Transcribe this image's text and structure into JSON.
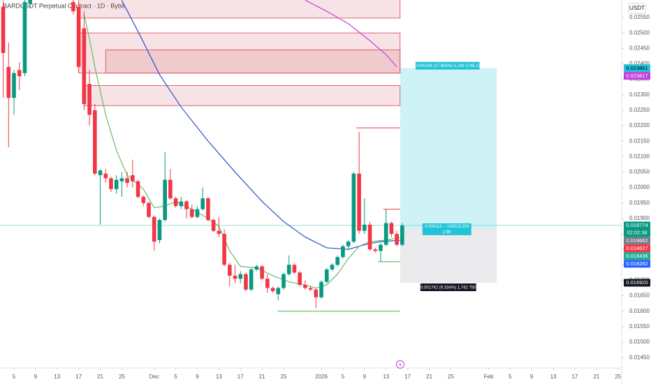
{
  "chart_data": {
    "type": "candlestick",
    "title": "BARDUSDT Perpetual Contract · 1D · Bybit",
    "currency": "USDT",
    "up_color": "#089981",
    "down_color": "#f23645",
    "xlim": [
      -2.59,
      112.69
    ],
    "ylim": [
      0.014165,
      0.026065
    ],
    "xticks": [
      {
        "value": 0,
        "label": "5"
      },
      {
        "value": 4,
        "label": "9"
      },
      {
        "value": 8,
        "label": "13"
      },
      {
        "value": 12,
        "label": "17"
      },
      {
        "value": 16,
        "label": "21"
      },
      {
        "value": 20,
        "label": "25"
      },
      {
        "value": 26,
        "label": "Dec"
      },
      {
        "value": 30,
        "label": "5"
      },
      {
        "value": 34,
        "label": "9"
      },
      {
        "value": 38,
        "label": "13"
      },
      {
        "value": 42,
        "label": "17"
      },
      {
        "value": 46,
        "label": "21"
      },
      {
        "value": 50,
        "label": "25"
      },
      {
        "value": 57,
        "label": "2026"
      },
      {
        "value": 61,
        "label": "5"
      },
      {
        "value": 65,
        "label": "9"
      },
      {
        "value": 69,
        "label": "13"
      },
      {
        "value": 73,
        "label": "17"
      },
      {
        "value": 77,
        "label": "21"
      },
      {
        "value": 81,
        "label": "25"
      },
      {
        "value": 88,
        "label": "Feb"
      },
      {
        "value": 92,
        "label": "5"
      },
      {
        "value": 96,
        "label": "9"
      },
      {
        "value": 100,
        "label": "13"
      },
      {
        "value": 104,
        "label": "17"
      },
      {
        "value": 108,
        "label": "21"
      },
      {
        "value": 112,
        "label": "25"
      }
    ],
    "yticks": [
      {
        "value": 0.0145,
        "label": "0.01450"
      },
      {
        "value": 0.015,
        "label": "0.01500"
      },
      {
        "value": 0.0155,
        "label": "0.01550"
      },
      {
        "value": 0.016,
        "label": "0.01600"
      },
      {
        "value": 0.0165,
        "label": "0.01650"
      },
      {
        "value": 0.017,
        "label": "0.01700"
      },
      {
        "value": 0.0175,
        "label": "0.01750"
      },
      {
        "value": 0.018,
        "label": "0.01800"
      },
      {
        "value": 0.0185,
        "label": "0.01850"
      },
      {
        "value": 0.019,
        "label": "0.01900"
      },
      {
        "value": 0.0195,
        "label": "0.01950"
      },
      {
        "value": 0.02,
        "label": "0.02000"
      },
      {
        "value": 0.0205,
        "label": "0.02050"
      },
      {
        "value": 0.021,
        "label": "0.02100"
      },
      {
        "value": 0.0215,
        "label": "0.02150"
      },
      {
        "value": 0.022,
        "label": "0.02200"
      },
      {
        "value": 0.0225,
        "label": "0.02250"
      },
      {
        "value": 0.023,
        "label": "0.02300"
      },
      {
        "value": 0.0235,
        "label": "0.02350"
      },
      {
        "value": 0.024,
        "label": "0.02400"
      },
      {
        "value": 0.0245,
        "label": "0.02450"
      },
      {
        "value": 0.025,
        "label": "0.02500"
      },
      {
        "value": 0.0255,
        "label": "0.02550"
      }
    ],
    "x": [
      -2,
      -1,
      0,
      1,
      2,
      3,
      11,
      12,
      13,
      14,
      15,
      16,
      17,
      18,
      19,
      20,
      21,
      22,
      23,
      24,
      25,
      26,
      27,
      28,
      29,
      30,
      31,
      32,
      33,
      34,
      35,
      36,
      37,
      38,
      39,
      40,
      41,
      42,
      43,
      44,
      45,
      46,
      47,
      48,
      49,
      50,
      51,
      52,
      53,
      54,
      55,
      56,
      57,
      58,
      59,
      60,
      61,
      62,
      63,
      64,
      65,
      66,
      67,
      68,
      69,
      70,
      71,
      72
    ],
    "open": [
      0.02585,
      0.0239,
      0.0229,
      0.0238,
      0.0237,
      0.02595,
      0.026,
      0.02585,
      0.02515,
      0.02335,
      0.0225,
      0.0204,
      0.02045,
      0.0203,
      0.01995,
      0.0202,
      0.0203,
      0.0204,
      0.0202,
      0.0197,
      0.0195,
      0.01905,
      0.0183,
      0.01895,
      0.02025,
      0.01965,
      0.0194,
      0.01955,
      0.0193,
      0.01905,
      0.0193,
      0.01965,
      0.01895,
      0.0186,
      0.0185,
      0.0175,
      0.01715,
      0.01705,
      0.0172,
      0.0167,
      0.01735,
      0.01745,
      0.01705,
      0.01675,
      0.01655,
      0.01675,
      0.0172,
      0.0175,
      0.01725,
      0.01685,
      0.01675,
      0.0167,
      0.01645,
      0.01695,
      0.01735,
      0.0175,
      0.01775,
      0.0181,
      0.01825,
      0.02045,
      0.0186,
      0.0188,
      0.018,
      0.01795,
      0.01815,
      0.01885,
      0.0185,
      0.01815
    ],
    "high": [
      0.02605,
      0.0247,
      0.0238,
      0.02405,
      0.0261,
      0.0263,
      0.0262,
      0.026,
      0.0257,
      0.0238,
      0.0227,
      0.0206,
      0.0206,
      0.02035,
      0.0204,
      0.0205,
      0.0205,
      0.0209,
      0.02025,
      0.01975,
      0.01955,
      0.0191,
      0.019,
      0.02115,
      0.0206,
      0.0197,
      0.0197,
      0.0196,
      0.01945,
      0.0194,
      0.02,
      0.0197,
      0.019,
      0.01905,
      0.01865,
      0.01755,
      0.0175,
      0.0173,
      0.01725,
      0.0174,
      0.0175,
      0.0175,
      0.0172,
      0.0168,
      0.0168,
      0.01725,
      0.0178,
      0.01755,
      0.0173,
      0.017,
      0.0168,
      0.01675,
      0.017,
      0.0174,
      0.01755,
      0.0178,
      0.01815,
      0.0183,
      0.0205,
      0.0218,
      0.01965,
      0.0189,
      0.01805,
      0.0182,
      0.0193,
      0.0189,
      0.0186,
      0.01885
    ],
    "low": [
      0.0229,
      0.0213,
      0.02235,
      0.02315,
      0.0236,
      0.0258,
      0.0256,
      0.0237,
      0.0225,
      0.022,
      0.0204,
      0.0188,
      0.02015,
      0.01985,
      0.0198,
      0.0197,
      0.02,
      0.02,
      0.01965,
      0.0194,
      0.019,
      0.01795,
      0.0182,
      0.0189,
      0.0196,
      0.01935,
      0.0193,
      0.019,
      0.019,
      0.019,
      0.01925,
      0.0189,
      0.01855,
      0.0184,
      0.01745,
      0.0168,
      0.0169,
      0.0169,
      0.01665,
      0.01665,
      0.0173,
      0.017,
      0.0166,
      0.0166,
      0.01635,
      0.0167,
      0.01715,
      0.0172,
      0.0168,
      0.0167,
      0.01665,
      0.0161,
      0.0164,
      0.0169,
      0.0173,
      0.01745,
      0.0177,
      0.018,
      0.0182,
      0.0185,
      0.0185,
      0.01795,
      0.0179,
      0.0176,
      0.0181,
      0.0184,
      0.0181,
      0.0181
    ],
    "close": [
      0.02435,
      0.0229,
      0.0237,
      0.0236,
      0.026,
      0.0262,
      0.0257,
      0.0239,
      0.0227,
      0.02235,
      0.02045,
      0.02055,
      0.0203,
      0.01995,
      0.02025,
      0.0203,
      0.02015,
      0.0202,
      0.0197,
      0.0195,
      0.01905,
      0.01825,
      0.01895,
      0.02025,
      0.01965,
      0.0194,
      0.01955,
      0.0193,
      0.01905,
      0.0193,
      0.01965,
      0.01895,
      0.0186,
      0.0185,
      0.0175,
      0.01715,
      0.01705,
      0.0172,
      0.0167,
      0.01735,
      0.01745,
      0.01705,
      0.01675,
      0.01665,
      0.01675,
      0.0172,
      0.0175,
      0.01725,
      0.01685,
      0.01675,
      0.0167,
      0.01645,
      0.01695,
      0.01735,
      0.0175,
      0.01775,
      0.0181,
      0.01825,
      0.02045,
      0.0186,
      0.0188,
      0.018,
      0.01795,
      0.01815,
      0.01885,
      0.0185,
      0.01815,
      0.018774
    ],
    "overlays": [
      {
        "color": "#2a50c8",
        "x": [
          20,
          23,
          27,
          31,
          36,
          41,
          46,
          50,
          54,
          58,
          62,
          65,
          68,
          72
        ],
        "values": [
          0.02605,
          0.02505,
          0.02365,
          0.0226,
          0.0215,
          0.0205,
          0.01955,
          0.0189,
          0.0184,
          0.01805,
          0.018,
          0.01815,
          0.01825,
          0.0183
        ]
      },
      {
        "color": "#66bb6a",
        "x": [
          13,
          14,
          15,
          17,
          19,
          21,
          24,
          26,
          28,
          30,
          33,
          36,
          38,
          40,
          42,
          45,
          48,
          51,
          54,
          56,
          58,
          60,
          62,
          64,
          66,
          69,
          72
        ],
        "values": [
          0.0256,
          0.0248,
          0.0239,
          0.02235,
          0.0212,
          0.0204,
          0.01995,
          0.01935,
          0.0194,
          0.01955,
          0.0193,
          0.019,
          0.01875,
          0.01795,
          0.01745,
          0.0174,
          0.01715,
          0.01695,
          0.01685,
          0.01675,
          0.01685,
          0.0172,
          0.0177,
          0.0181,
          0.01825,
          0.0183,
          0.0184
        ]
      },
      {
        "color": "#c040e0",
        "x": [
          54,
          58,
          62,
          66,
          69,
          71
        ],
        "values": [
          0.02606,
          0.0257,
          0.0253,
          0.02475,
          0.0243,
          0.0239
        ]
      }
    ],
    "zones": [
      {
        "x": [
          12,
          71.6
        ],
        "y": [
          0.02548,
          0.0262
        ]
      },
      {
        "x": [
          12,
          71.6
        ],
        "y": [
          0.0237,
          0.025
        ]
      },
      {
        "x": [
          17,
          71.6
        ],
        "y": [
          0.0237,
          0.02445
        ]
      },
      {
        "x": [
          13,
          71.6
        ],
        "y": [
          0.02265,
          0.0233
        ]
      }
    ],
    "levels": [
      {
        "color": "#f23645",
        "value": 0.02193,
        "x": [
          63.5,
          71.6
        ]
      },
      {
        "color": "#f23645",
        "value": 0.0193,
        "x": [
          68.5,
          71.6
        ]
      },
      {
        "color": "#4caf50",
        "value": 0.0176,
        "x": [
          67.5,
          71.6
        ]
      },
      {
        "color": "#4caf50",
        "value": 0.016,
        "x": [
          48.9,
          71.6
        ]
      }
    ],
    "position": {
      "x": [
        71.6,
        89.5
      ],
      "entry": 0.018662,
      "target": 0.023861,
      "stop": 0.01692,
      "target_label": "0.005199 (27.859%) 5,199 1746.13",
      "stop_label": "0.001742 (9.334%) 1,742 750",
      "entry_label": [
        "0.000112 − 143513.203",
        "2.98"
      ]
    },
    "last_price": 0.018774,
    "countdown": "02:02:38",
    "price_tags": [
      {
        "value": 0.023861,
        "label": "0.023861",
        "color": "#22c3d6",
        "text_color": "#000000"
      },
      {
        "value": 0.023817,
        "label": "0.023817",
        "color": "#c040e0",
        "text_color": "#ffffff"
      },
      {
        "value": 0.018774,
        "label": "0.018774",
        "color": "#089981",
        "text_color": "#ffffff"
      },
      {
        "value": 0.018662,
        "label": "0.018662",
        "color": "#787b86",
        "text_color": "#ffffff"
      },
      {
        "value": 0.018627,
        "label": "0.018627",
        "color": "#f23645",
        "text_color": "#ffffff"
      },
      {
        "value": 0.018436,
        "label": "0.018436",
        "color": "#22ab94",
        "text_color": "#ffffff"
      },
      {
        "value": 0.018282,
        "label": "0.018282",
        "color": "#2962ff",
        "text_color": "#ffffff"
      },
      {
        "value": 0.01692,
        "label": "0.016920",
        "color": "#131722",
        "text_color": "#ffffff"
      }
    ]
  }
}
